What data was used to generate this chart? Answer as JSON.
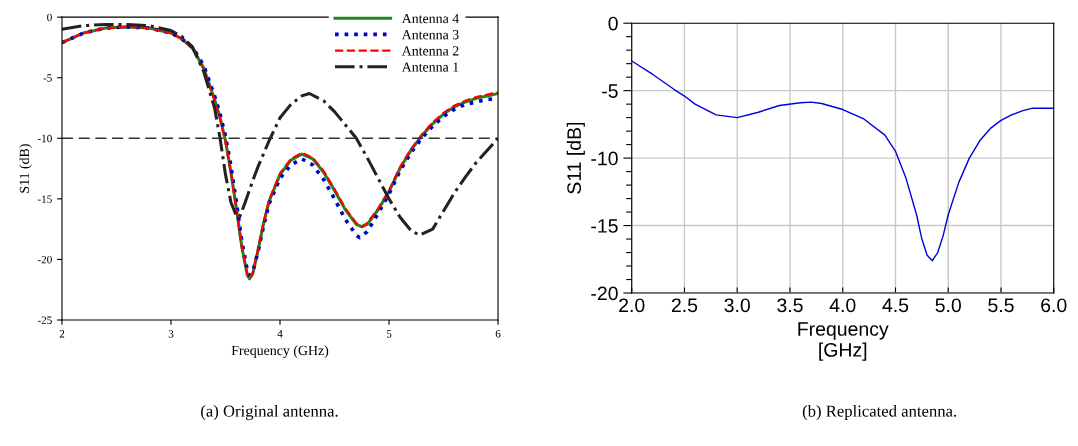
{
  "chart_data": [
    {
      "type": "line",
      "xlabel": "Frequency (GHz)",
      "ylabel": "S11 (dB)",
      "xlim": [
        2,
        6
      ],
      "xticks": [
        2,
        3,
        4,
        5,
        6
      ],
      "ylim": [
        -25,
        0
      ],
      "yticks": [
        -25,
        -20,
        -15,
        -10,
        -5,
        0
      ],
      "grid": false,
      "legend": "top right",
      "ref_lines": [
        {
          "axis": "y",
          "value": -10,
          "color": "#333333",
          "line_style": "dashed"
        }
      ],
      "annotations": [
        "(a) Original antenna."
      ],
      "series": [
        {
          "name": "Antenna 4",
          "color": "#1a8a1a",
          "line_style": "solid",
          "x": [
            2,
            2.2,
            2.4,
            2.6,
            2.8,
            3.0,
            3.1,
            3.2,
            3.3,
            3.4,
            3.45,
            3.5,
            3.55,
            3.6,
            3.65,
            3.7,
            3.72,
            3.75,
            3.8,
            3.85,
            3.9,
            4.0,
            4.1,
            4.2,
            4.3,
            4.4,
            4.5,
            4.6,
            4.7,
            4.75,
            4.8,
            4.9,
            5.0,
            5.1,
            5.2,
            5.3,
            5.4,
            5.5,
            5.6,
            5.7,
            5.8,
            5.9,
            6.0
          ],
          "values": [
            -2.1,
            -1.3,
            -0.9,
            -0.8,
            -0.9,
            -1.3,
            -1.8,
            -2.6,
            -4.2,
            -6.8,
            -8.3,
            -10.2,
            -12.8,
            -15.8,
            -19,
            -21.3,
            -21.6,
            -21.2,
            -19.2,
            -17,
            -15.2,
            -13,
            -11.8,
            -11.3,
            -11.7,
            -12.8,
            -14.3,
            -15.9,
            -17.1,
            -17.3,
            -17.1,
            -15.9,
            -14.4,
            -12.5,
            -11,
            -9.8,
            -8.8,
            -8,
            -7.4,
            -7,
            -6.7,
            -6.5,
            -6.3
          ]
        },
        {
          "name": "Antenna 3",
          "color": "#0000cc",
          "line_style": "dotted",
          "x": [
            2,
            2.2,
            2.4,
            2.6,
            2.8,
            3.0,
            3.1,
            3.2,
            3.3,
            3.4,
            3.45,
            3.5,
            3.55,
            3.6,
            3.65,
            3.7,
            3.72,
            3.75,
            3.8,
            3.85,
            3.9,
            4.0,
            4.1,
            4.2,
            4.3,
            4.4,
            4.5,
            4.6,
            4.7,
            4.73,
            4.8,
            4.9,
            5.0,
            5.1,
            5.2,
            5.3,
            5.4,
            5.5,
            5.6,
            5.7,
            5.8,
            5.9,
            6.0
          ],
          "values": [
            -2.1,
            -1.3,
            -0.9,
            -0.8,
            -0.9,
            -1.3,
            -1.8,
            -2.5,
            -4.0,
            -6.5,
            -8.0,
            -9.8,
            -12.3,
            -15.3,
            -18.5,
            -20.9,
            -21.3,
            -21.0,
            -19.3,
            -17.2,
            -15.4,
            -13.3,
            -12.2,
            -11.7,
            -12.2,
            -13.4,
            -15.0,
            -16.7,
            -18.0,
            -18.2,
            -17.7,
            -16.2,
            -14.6,
            -12.7,
            -11.2,
            -10.0,
            -9.0,
            -8.2,
            -7.6,
            -7.2,
            -7.0,
            -6.8,
            -6.7
          ]
        },
        {
          "name": "Antenna 2",
          "color": "#ff0000",
          "line_style": "dashed",
          "x": [
            2,
            2.2,
            2.4,
            2.6,
            2.8,
            3.0,
            3.1,
            3.2,
            3.3,
            3.4,
            3.45,
            3.5,
            3.55,
            3.6,
            3.65,
            3.7,
            3.72,
            3.75,
            3.8,
            3.85,
            3.9,
            4.0,
            4.1,
            4.2,
            4.3,
            4.4,
            4.5,
            4.6,
            4.7,
            4.75,
            4.8,
            4.9,
            5.0,
            5.1,
            5.2,
            5.3,
            5.4,
            5.5,
            5.6,
            5.7,
            5.8,
            5.9,
            6.0
          ],
          "values": [
            -2.1,
            -1.3,
            -0.9,
            -0.8,
            -0.9,
            -1.3,
            -1.8,
            -2.6,
            -4.3,
            -6.9,
            -8.4,
            -10.3,
            -12.9,
            -15.9,
            -19,
            -21.2,
            -21.5,
            -21.1,
            -19.1,
            -16.9,
            -15.1,
            -12.9,
            -11.7,
            -11.2,
            -11.6,
            -12.7,
            -14.2,
            -15.8,
            -17.0,
            -17.3,
            -17.0,
            -15.8,
            -14.3,
            -12.4,
            -10.9,
            -9.7,
            -8.7,
            -7.9,
            -7.3,
            -6.9,
            -6.6,
            -6.4,
            -6.2
          ]
        },
        {
          "name": "Antenna 1",
          "color": "#222222",
          "line_style": "dashdot",
          "x": [
            2,
            2.2,
            2.4,
            2.6,
            2.8,
            3.0,
            3.1,
            3.2,
            3.3,
            3.4,
            3.45,
            3.5,
            3.55,
            3.6,
            3.63,
            3.68,
            3.75,
            3.8,
            3.9,
            4.0,
            4.1,
            4.2,
            4.27,
            4.4,
            4.5,
            4.6,
            4.7,
            4.8,
            4.9,
            5.0,
            5.1,
            5.2,
            5.28,
            5.4,
            5.5,
            5.6,
            5.7,
            5.8,
            5.9,
            6.0
          ],
          "values": [
            -1.0,
            -0.7,
            -0.6,
            -0.6,
            -0.7,
            -1.1,
            -1.6,
            -2.5,
            -4.5,
            -7.5,
            -10,
            -13,
            -15.3,
            -16.4,
            -16.5,
            -15.3,
            -13.5,
            -12.3,
            -10.2,
            -8.3,
            -7.2,
            -6.5,
            -6.3,
            -6.9,
            -7.8,
            -8.9,
            -10,
            -11.6,
            -13.3,
            -15,
            -16.5,
            -17.6,
            -18,
            -17.5,
            -16,
            -14.5,
            -13.2,
            -12,
            -11,
            -10
          ]
        }
      ]
    },
    {
      "type": "line",
      "xlabel": "Frequency\n[GHz]",
      "ylabel": "S11 [dB]",
      "xlim": [
        2,
        6
      ],
      "xticks": [
        {
          "value": 2,
          "label": "2.0"
        },
        {
          "value": 2.5,
          "label": "2.5"
        },
        {
          "value": 3,
          "label": "3.0"
        },
        {
          "value": 3.5,
          "label": "3.5"
        },
        {
          "value": 4,
          "label": "4.0"
        },
        {
          "value": 4.5,
          "label": "4.5"
        },
        {
          "value": 5,
          "label": "5.0"
        },
        {
          "value": 5.5,
          "label": "5.5"
        },
        {
          "value": 6,
          "label": "6.0"
        }
      ],
      "ylim": [
        -20,
        0
      ],
      "yticks": [
        -20,
        {
          "value": -19,
          "label": null
        },
        {
          "value": -18,
          "label": null
        },
        {
          "value": -17,
          "label": null
        },
        {
          "value": -16,
          "label": null
        },
        -15,
        {
          "value": -14,
          "label": null
        },
        {
          "value": -13,
          "label": null
        },
        {
          "value": -12,
          "label": null
        },
        {
          "value": -11,
          "label": null
        },
        -10,
        {
          "value": -9,
          "label": null
        },
        {
          "value": -8,
          "label": null
        },
        {
          "value": -7,
          "label": null
        },
        {
          "value": -6,
          "label": null
        },
        -5,
        {
          "value": -4,
          "label": null
        },
        {
          "value": -3,
          "label": null
        },
        {
          "value": -2,
          "label": null
        },
        {
          "value": -1,
          "label": null
        },
        0
      ],
      "grid": true,
      "annotations": [
        "(b) Replicated antenna."
      ],
      "series": [
        {
          "color": "#0000dd",
          "line_style": "solid",
          "x": [
            2.0,
            2.2,
            2.4,
            2.5,
            2.6,
            2.8,
            3.0,
            3.2,
            3.4,
            3.6,
            3.7,
            3.8,
            4.0,
            4.2,
            4.4,
            4.5,
            4.6,
            4.7,
            4.75,
            4.8,
            4.85,
            4.9,
            4.95,
            5.0,
            5.1,
            5.2,
            5.3,
            5.4,
            5.5,
            5.6,
            5.7,
            5.8,
            6.0
          ],
          "values": [
            -2.8,
            -3.8,
            -4.9,
            -5.4,
            -6.0,
            -6.8,
            -7.0,
            -6.6,
            -6.1,
            -5.9,
            -5.85,
            -5.95,
            -6.4,
            -7.1,
            -8.3,
            -9.5,
            -11.5,
            -14.2,
            -16.0,
            -17.2,
            -17.6,
            -17.0,
            -15.8,
            -14.2,
            -11.8,
            -10.0,
            -8.7,
            -7.8,
            -7.2,
            -6.8,
            -6.5,
            -6.3,
            -6.3
          ]
        }
      ]
    }
  ]
}
